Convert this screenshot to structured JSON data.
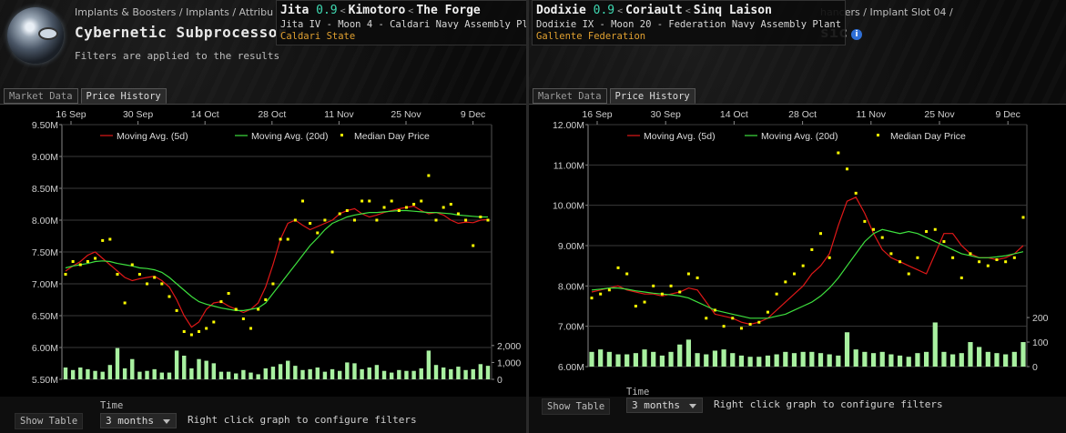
{
  "left": {
    "breadcrumb": "Implants & Boosters / Implants / Attribu",
    "title": "Cybernetic Subprocessor -",
    "subtitle": "Filters are applied to the results",
    "tabs": [
      "Market Data",
      "Price History"
    ],
    "active_tab": "Price History",
    "location": {
      "system": "Jita",
      "security": "0.9",
      "constellation": "Kimotoro",
      "region": "The Forge",
      "station": "Jita IV - Moon 4 - Caldari Navy Assembly Plant",
      "faction": "Caldari State"
    },
    "bottom": {
      "show_table": "Show Table",
      "time_label": "Time",
      "time_value": "3 months",
      "hint": "Right click graph to configure filters"
    }
  },
  "right": {
    "breadcrumb": "hancers / Implant Slot 04 /",
    "title_fragment": "sic",
    "tabs": [
      "Market Data",
      "Price History"
    ],
    "active_tab": "Price History",
    "location": {
      "system": "Dodixie",
      "security": "0.9",
      "constellation": "Coriault",
      "region": "Sinq Laison",
      "station": "Dodixie IX - Moon 20 - Federation Navy Assembly Plant",
      "faction": "Gallente Federation"
    },
    "bottom": {
      "show_table": "Show Table",
      "time_label": "Time",
      "time_value": "3 months",
      "hint": "Right click graph to configure filters"
    }
  },
  "colors": {
    "avg5": "#e01818",
    "avg20": "#3ee03e",
    "median": "#ffff00",
    "volume": "#a8f0a0",
    "security": "#3fd9b2",
    "faction": "#e0a030"
  },
  "chart_data": [
    {
      "type": "line",
      "title": "",
      "x_ticks": [
        "16 Sep",
        "30 Sep",
        "14 Oct",
        "28 Oct",
        "11 Nov",
        "25 Nov",
        "9 Dec"
      ],
      "y_ticks": [
        "9.50M",
        "9.00M",
        "8.50M",
        "8.00M",
        "7.50M",
        "7.00M",
        "6.50M",
        "6.00M",
        "5.50M"
      ],
      "ylim": [
        5.5,
        9.5
      ],
      "volume_ticks": [
        "2,000",
        "1,000",
        "0"
      ],
      "volume_lim": [
        0,
        2800
      ],
      "legend": [
        "Moving Avg. (5d)",
        "Moving Avg. (20d)",
        "Median Day Price"
      ],
      "series": [
        {
          "name": "Moving Avg. (5d)",
          "values": [
            7.2,
            7.28,
            7.35,
            7.45,
            7.5,
            7.4,
            7.3,
            7.2,
            7.1,
            7.05,
            7.08,
            7.1,
            7.12,
            7.05,
            6.95,
            6.75,
            6.5,
            6.32,
            6.4,
            6.6,
            6.7,
            6.72,
            6.65,
            6.6,
            6.55,
            6.6,
            6.7,
            6.95,
            7.3,
            7.7,
            7.95,
            8.0,
            7.92,
            7.85,
            7.9,
            7.95,
            8.0,
            8.1,
            8.15,
            8.18,
            8.1,
            8.05,
            8.08,
            8.12,
            8.15,
            8.18,
            8.2,
            8.22,
            8.15,
            8.1,
            8.12,
            8.08,
            8.0,
            7.95,
            7.97,
            7.96,
            8.0,
            8.01
          ]
        },
        {
          "name": "Moving Avg. (20d)",
          "values": [
            7.25,
            7.28,
            7.3,
            7.32,
            7.35,
            7.36,
            7.35,
            7.32,
            7.3,
            7.28,
            7.25,
            7.24,
            7.22,
            7.18,
            7.1,
            7.0,
            6.9,
            6.8,
            6.72,
            6.68,
            6.65,
            6.62,
            6.6,
            6.58,
            6.58,
            6.6,
            6.62,
            6.7,
            6.85,
            7.0,
            7.15,
            7.3,
            7.45,
            7.6,
            7.72,
            7.85,
            7.95,
            8.0,
            8.05,
            8.08,
            8.1,
            8.12,
            8.12,
            8.13,
            8.14,
            8.15,
            8.15,
            8.14,
            8.13,
            8.12,
            8.12,
            8.11,
            8.1,
            8.08,
            8.07,
            8.06,
            8.05,
            8.05
          ]
        },
        {
          "name": "Median Day Price",
          "values": [
            7.15,
            7.35,
            7.3,
            7.35,
            7.4,
            7.68,
            7.7,
            7.15,
            6.7,
            7.3,
            7.15,
            7.0,
            7.1,
            7.0,
            6.8,
            6.58,
            6.25,
            6.2,
            6.25,
            6.3,
            6.4,
            6.72,
            6.85,
            6.6,
            6.45,
            6.3,
            6.6,
            6.75,
            7.0,
            7.7,
            7.7,
            8.0,
            8.3,
            7.95,
            7.8,
            8.0,
            7.5,
            8.1,
            8.15,
            8.0,
            8.3,
            8.3,
            8.0,
            8.2,
            8.3,
            8.15,
            8.2,
            8.25,
            8.3,
            8.7,
            8.0,
            8.2,
            8.25,
            8.1,
            8.0,
            7.6,
            8.05,
            8.0
          ]
        }
      ],
      "volume": [
        700,
        550,
        700,
        600,
        500,
        450,
        850,
        1850,
        650,
        1200,
        450,
        500,
        600,
        400,
        400,
        1700,
        1400,
        650,
        1200,
        1100,
        950,
        450,
        450,
        350,
        550,
        400,
        300,
        650,
        750,
        900,
        1100,
        800,
        550,
        600,
        700,
        450,
        600,
        500,
        1000,
        950,
        600,
        700,
        850,
        500,
        400,
        550,
        500,
        500,
        650,
        1700,
        850,
        700,
        600,
        750,
        550,
        600,
        900,
        800
      ]
    },
    {
      "type": "line",
      "title": "",
      "x_ticks": [
        "16 Sep",
        "30 Sep",
        "14 Oct",
        "28 Oct",
        "11 Nov",
        "25 Nov",
        "9 Dec"
      ],
      "y_ticks": [
        "12.00M",
        "11.00M",
        "10.00M",
        "9.00M",
        "8.00M",
        "7.00M",
        "6.00M"
      ],
      "ylim": [
        6.0,
        12.0
      ],
      "volume_ticks": [
        "200",
        "100",
        "0"
      ],
      "volume_lim": [
        0,
        230
      ],
      "legend": [
        "Moving Avg. (5d)",
        "Moving Avg. (20d)",
        "Median Day Price"
      ],
      "series": [
        {
          "name": "Moving Avg. (5d)",
          "values": [
            7.85,
            7.9,
            7.95,
            8.0,
            7.9,
            7.85,
            7.8,
            7.8,
            7.75,
            7.8,
            7.85,
            7.95,
            7.9,
            7.6,
            7.3,
            7.25,
            7.2,
            7.1,
            7.05,
            7.1,
            7.2,
            7.4,
            7.6,
            7.8,
            8.0,
            8.3,
            8.5,
            8.8,
            9.5,
            10.1,
            10.2,
            9.8,
            9.3,
            8.9,
            8.7,
            8.6,
            8.5,
            8.4,
            8.3,
            8.8,
            9.3,
            9.3,
            9.0,
            8.8,
            8.7,
            8.7,
            8.65,
            8.7,
            8.8,
            9.0
          ]
        },
        {
          "name": "Moving Avg. (20d)",
          "values": [
            7.9,
            7.92,
            7.95,
            7.95,
            7.92,
            7.88,
            7.85,
            7.82,
            7.8,
            7.78,
            7.75,
            7.7,
            7.6,
            7.5,
            7.4,
            7.35,
            7.3,
            7.25,
            7.2,
            7.2,
            7.2,
            7.25,
            7.3,
            7.4,
            7.5,
            7.6,
            7.75,
            7.95,
            8.2,
            8.5,
            8.8,
            9.1,
            9.3,
            9.4,
            9.35,
            9.3,
            9.35,
            9.3,
            9.2,
            9.1,
            9.0,
            8.9,
            8.8,
            8.75,
            8.7,
            8.7,
            8.72,
            8.75,
            8.8,
            8.85
          ]
        },
        {
          "name": "Median Day Price",
          "values": [
            7.7,
            7.8,
            7.9,
            8.45,
            8.3,
            7.5,
            7.6,
            8.0,
            7.8,
            8.0,
            7.85,
            8.3,
            8.2,
            7.2,
            7.4,
            7.0,
            7.2,
            6.95,
            7.05,
            7.1,
            7.35,
            7.8,
            8.1,
            8.3,
            8.5,
            8.9,
            9.3,
            8.7,
            11.3,
            10.9,
            10.3,
            9.6,
            9.4,
            9.2,
            8.8,
            8.6,
            8.3,
            8.7,
            9.35,
            9.4,
            9.1,
            8.7,
            8.2,
            8.8,
            8.6,
            8.5,
            8.65,
            8.6,
            8.7,
            9.7
          ]
        }
      ],
      "volume": [
        60,
        70,
        60,
        50,
        50,
        55,
        70,
        60,
        45,
        60,
        90,
        110,
        55,
        50,
        65,
        70,
        55,
        45,
        40,
        40,
        45,
        50,
        60,
        55,
        60,
        60,
        55,
        50,
        45,
        140,
        70,
        60,
        55,
        60,
        50,
        45,
        40,
        55,
        60,
        180,
        60,
        50,
        55,
        100,
        80,
        60,
        55,
        50,
        60,
        100
      ]
    }
  ]
}
